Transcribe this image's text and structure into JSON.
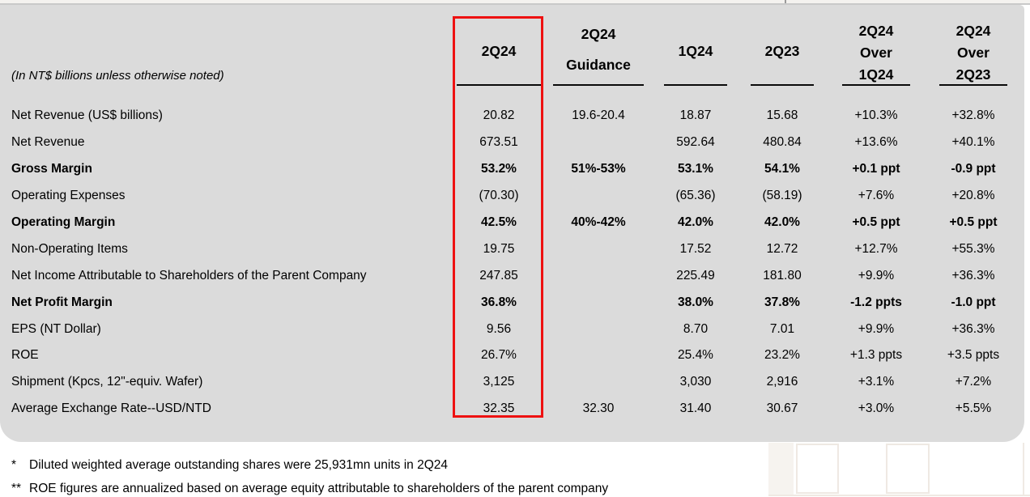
{
  "colors": {
    "panel": "#dbdbdb",
    "accent": "#ee1111",
    "text": "#000000"
  },
  "table": {
    "unit_note": "(In NT$ billions unless otherwise noted)",
    "columns": [
      {
        "key": "q2_2024",
        "lines": [
          "2Q24"
        ],
        "highlighted": true
      },
      {
        "key": "q2_2024_guidance",
        "lines": [
          "2Q24",
          "Guidance"
        ]
      },
      {
        "key": "q1_2024",
        "lines": [
          "1Q24"
        ]
      },
      {
        "key": "q2_2023",
        "lines": [
          "2Q23"
        ]
      },
      {
        "key": "q2_2024_over_q1_2024",
        "lines": [
          "2Q24",
          "Over",
          "1Q24"
        ]
      },
      {
        "key": "q2_2024_over_q2_2023",
        "lines": [
          "2Q24",
          "Over",
          "2Q23"
        ]
      }
    ],
    "rows": [
      {
        "label": "Net Revenue (US$ billions)",
        "bold": false,
        "values": [
          "20.82",
          "19.6-20.4",
          "18.87",
          "15.68",
          "+10.3%",
          "+32.8%"
        ]
      },
      {
        "label": "Net Revenue",
        "bold": false,
        "values": [
          "673.51",
          "",
          "592.64",
          "480.84",
          "+13.6%",
          "+40.1%"
        ]
      },
      {
        "label": "Gross Margin",
        "bold": true,
        "values": [
          "53.2%",
          "51%-53%",
          "53.1%",
          "54.1%",
          "+0.1 ppt",
          "-0.9 ppt"
        ]
      },
      {
        "label": "Operating Expenses",
        "bold": false,
        "values": [
          "(70.30)",
          "",
          "(65.36)",
          "(58.19)",
          "+7.6%",
          "+20.8%"
        ]
      },
      {
        "label": "Operating Margin",
        "bold": true,
        "values": [
          "42.5%",
          "40%-42%",
          "42.0%",
          "42.0%",
          "+0.5 ppt",
          "+0.5 ppt"
        ]
      },
      {
        "label": "Non-Operating Items",
        "bold": false,
        "values": [
          "19.75",
          "",
          "17.52",
          "12.72",
          "+12.7%",
          "+55.3%"
        ]
      },
      {
        "label": "Net Income Attributable to Shareholders of the Parent Company",
        "bold": false,
        "values": [
          "247.85",
          "",
          "225.49",
          "181.80",
          "+9.9%",
          "+36.3%"
        ]
      },
      {
        "label": "Net Profit Margin",
        "bold": true,
        "values": [
          "36.8%",
          "",
          "38.0%",
          "37.8%",
          "-1.2 ppts",
          "-1.0 ppt"
        ]
      },
      {
        "label": "EPS (NT Dollar)",
        "bold": false,
        "values": [
          "9.56",
          "",
          "8.70",
          "7.01",
          "+9.9%",
          "+36.3%"
        ]
      },
      {
        "label": "ROE",
        "bold": false,
        "values": [
          "26.7%",
          "",
          "25.4%",
          "23.2%",
          "+1.3 ppts",
          "+3.5 ppts"
        ]
      },
      {
        "label": "Shipment (Kpcs, 12\"-equiv. Wafer)",
        "bold": false,
        "values": [
          "3,125",
          "",
          "3,030",
          "2,916",
          "+3.1%",
          "+7.2%"
        ]
      },
      {
        "label": "Average Exchange Rate--USD/NTD",
        "bold": false,
        "values": [
          "32.35",
          "32.30",
          "31.40",
          "30.67",
          "+3.0%",
          "+5.5%"
        ]
      }
    ]
  },
  "footnotes": [
    {
      "marker": "*",
      "text": "Diluted weighted average outstanding shares were 25,931mn units in 2Q24"
    },
    {
      "marker": "**",
      "text": "ROE figures are annualized based on average equity attributable to shareholders of the parent company"
    }
  ]
}
